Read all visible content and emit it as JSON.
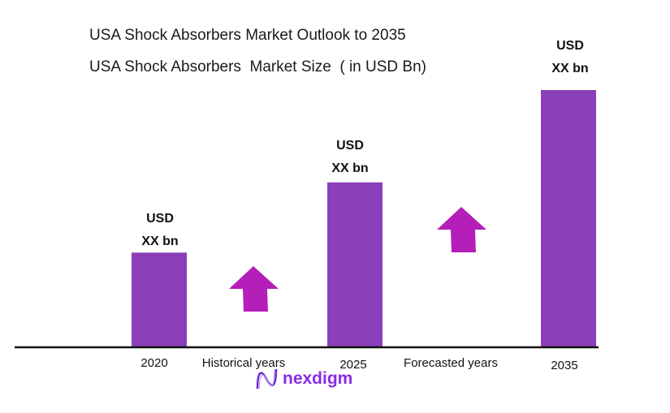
{
  "chart_data": {
    "type": "bar",
    "title": "USA Shock Absorbers Market Outlook to 2035",
    "subtitle": "USA Shock Absorbers  Market Size  ( in USD Bn)",
    "categories": [
      "2020",
      "2025",
      "2035"
    ],
    "values": [
      3.66,
      6.4,
      10
    ],
    "value_labels": [
      {
        "line1": "USD",
        "line2": "XX bn"
      },
      {
        "line1": "USD",
        "line2": "XX bn"
      },
      {
        "line1": "USD",
        "line2": "XX bn"
      }
    ],
    "ylim": [
      0,
      10
    ],
    "grid": false,
    "annotations": [
      "Historical years",
      "Forecasted years"
    ],
    "colors": {
      "bar": "#8a3fb8",
      "arrow": "#b31fb8",
      "axis": "#111111"
    }
  },
  "logo": {
    "text": "nexdigm"
  }
}
